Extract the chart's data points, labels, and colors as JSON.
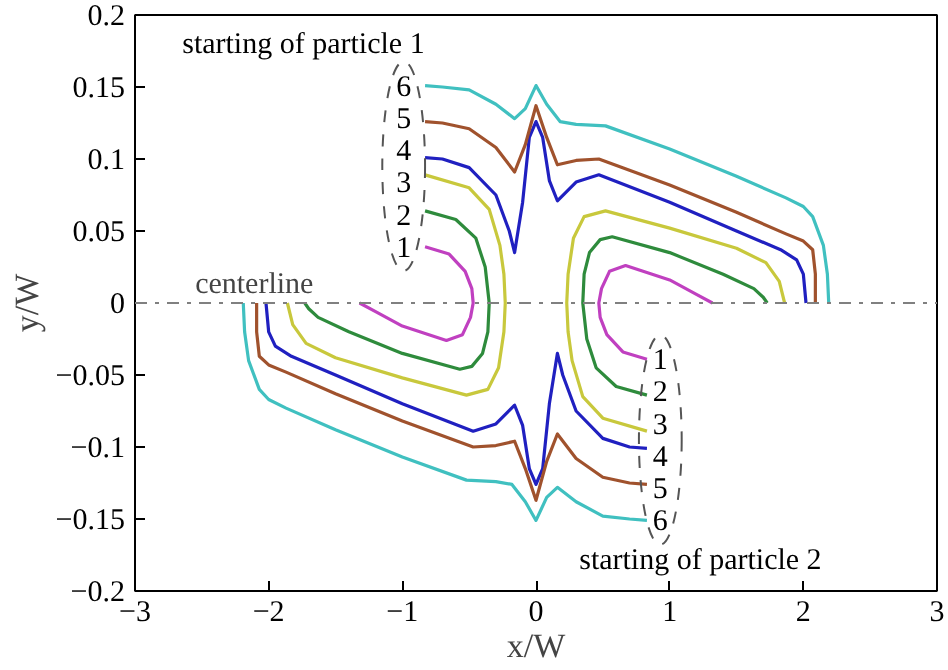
{
  "chart_data": {
    "type": "line",
    "xlabel": "x/W",
    "ylabel": "y/W",
    "xlim": [
      -3,
      3
    ],
    "ylim": [
      -0.2,
      0.2
    ],
    "xticks": [
      -3,
      -2,
      -1,
      0,
      1,
      2,
      3
    ],
    "yticks": [
      -0.2,
      -0.15,
      -0.1,
      -0.05,
      0,
      0.05,
      0.1,
      0.15,
      0.2
    ],
    "grid": false,
    "marker": "none",
    "line_style": "solid",
    "ref_lines": [
      {
        "axis": "y",
        "value": 0,
        "label": "centerline",
        "color": "#808080",
        "line_style": "dashdot"
      }
    ],
    "annotations": [
      "starting of particle 1",
      "1",
      "2",
      "3",
      "4",
      "5",
      "6",
      "starting of particle 2",
      "1",
      "2",
      "3",
      "4",
      "5",
      "6"
    ],
    "series": [
      {
        "color": "#c040c0",
        "x": [
          -0.83,
          -0.65,
          -0.53,
          -0.48,
          -0.47,
          -0.49,
          -0.55,
          -0.67,
          -1.0,
          -1.2,
          -1.32
        ],
        "values": [
          0.039,
          0.034,
          0.022,
          0.01,
          0,
          -0.01,
          -0.022,
          -0.026,
          -0.016,
          -0.006,
          0
        ]
      },
      {
        "color": "#2e8b3c",
        "x": [
          -0.83,
          -0.6,
          -0.45,
          -0.38,
          -0.35,
          -0.36,
          -0.4,
          -0.48,
          -0.57,
          -1.0,
          -1.4,
          -1.63,
          -1.7,
          -1.73
        ],
        "values": [
          0.064,
          0.058,
          0.045,
          0.025,
          0,
          -0.02,
          -0.035,
          -0.044,
          -0.046,
          -0.035,
          -0.02,
          -0.01,
          -0.004,
          0
        ]
      },
      {
        "color": "#c8c83c",
        "x": [
          -0.83,
          -0.5,
          -0.35,
          -0.27,
          -0.24,
          -0.23,
          -0.24,
          -0.28,
          -0.36,
          -0.52,
          -1.0,
          -1.5,
          -1.72,
          -1.82,
          -1.86
        ],
        "values": [
          0.089,
          0.08,
          0.065,
          0.04,
          0.02,
          0,
          -0.02,
          -0.045,
          -0.06,
          -0.064,
          -0.052,
          -0.038,
          -0.028,
          -0.015,
          0
        ]
      },
      {
        "color": "#2020c0",
        "x": [
          -0.83,
          -0.7,
          -0.5,
          -0.3,
          -0.2,
          -0.16,
          -0.1,
          -0.05,
          0.0,
          0.05,
          0.1,
          0.16,
          0.3,
          0.47,
          1.0,
          1.5,
          1.83,
          1.95,
          2.0,
          2.02
        ],
        "values": [
          0.101,
          0.1,
          0.094,
          0.075,
          0.05,
          0.035,
          0.07,
          0.115,
          0.126,
          0.115,
          0.085,
          0.071,
          0.084,
          0.089,
          0.07,
          0.05,
          0.037,
          0.03,
          0.02,
          0
        ]
      },
      {
        "color": "#a0522d",
        "x": [
          -0.83,
          -0.7,
          -0.5,
          -0.3,
          -0.16,
          -0.08,
          0.0,
          0.08,
          0.16,
          0.3,
          0.47,
          1.0,
          1.5,
          1.87,
          2.0,
          2.07,
          2.09,
          2.09
        ],
        "values": [
          0.126,
          0.125,
          0.121,
          0.108,
          0.091,
          0.11,
          0.137,
          0.115,
          0.096,
          0.099,
          0.1,
          0.082,
          0.063,
          0.048,
          0.043,
          0.037,
          0.02,
          0
        ]
      },
      {
        "color": "#40c0c0",
        "x": [
          -0.83,
          -0.7,
          -0.5,
          -0.3,
          -0.16,
          -0.08,
          0.0,
          0.08,
          0.18,
          0.3,
          0.52,
          1.0,
          1.5,
          1.87,
          2.0,
          2.07,
          2.15,
          2.18,
          2.19
        ],
        "values": [
          0.151,
          0.15,
          0.148,
          0.138,
          0.128,
          0.135,
          0.151,
          0.138,
          0.126,
          0.124,
          0.123,
          0.107,
          0.088,
          0.073,
          0.067,
          0.06,
          0.04,
          0.02,
          0
        ]
      },
      {
        "color": "#c040c0",
        "x": [
          0.83,
          0.65,
          0.53,
          0.48,
          0.47,
          0.49,
          0.55,
          0.67,
          1.0,
          1.2,
          1.32
        ],
        "values": [
          -0.039,
          -0.034,
          -0.022,
          -0.01,
          0,
          0.01,
          0.022,
          0.026,
          0.016,
          0.006,
          0
        ]
      },
      {
        "color": "#2e8b3c",
        "x": [
          0.83,
          0.6,
          0.45,
          0.38,
          0.35,
          0.36,
          0.4,
          0.48,
          0.57,
          1.0,
          1.4,
          1.63,
          1.7,
          1.73
        ],
        "values": [
          -0.064,
          -0.058,
          -0.045,
          -0.025,
          0,
          0.02,
          0.035,
          0.044,
          0.046,
          0.035,
          0.02,
          0.01,
          0.004,
          0
        ]
      },
      {
        "color": "#c8c83c",
        "x": [
          0.83,
          0.5,
          0.35,
          0.27,
          0.24,
          0.23,
          0.24,
          0.28,
          0.36,
          0.52,
          1.0,
          1.5,
          1.72,
          1.82,
          1.86
        ],
        "values": [
          -0.089,
          -0.08,
          -0.065,
          -0.04,
          -0.02,
          0,
          0.02,
          0.045,
          0.06,
          0.064,
          0.052,
          0.038,
          0.028,
          0.015,
          0
        ]
      },
      {
        "color": "#2020c0",
        "x": [
          0.83,
          0.7,
          0.5,
          0.3,
          0.2,
          0.16,
          0.1,
          0.05,
          0.0,
          -0.05,
          -0.1,
          -0.16,
          -0.3,
          -0.47,
          -1.0,
          -1.5,
          -1.83,
          -1.95,
          -2.0,
          -2.02
        ],
        "values": [
          -0.101,
          -0.1,
          -0.094,
          -0.075,
          -0.05,
          -0.035,
          -0.07,
          -0.115,
          -0.126,
          -0.115,
          -0.085,
          -0.071,
          -0.084,
          -0.089,
          -0.07,
          -0.05,
          -0.037,
          -0.03,
          -0.02,
          0
        ]
      },
      {
        "color": "#a0522d",
        "x": [
          0.83,
          0.7,
          0.5,
          0.3,
          0.16,
          0.08,
          0.0,
          -0.08,
          -0.16,
          -0.3,
          -0.47,
          -1.0,
          -1.5,
          -1.87,
          -2.0,
          -2.07,
          -2.09,
          -2.09
        ],
        "values": [
          -0.126,
          -0.125,
          -0.121,
          -0.108,
          -0.091,
          -0.11,
          -0.137,
          -0.115,
          -0.096,
          -0.099,
          -0.1,
          -0.082,
          -0.063,
          -0.048,
          -0.043,
          -0.037,
          -0.02,
          0
        ]
      },
      {
        "color": "#40c0c0",
        "x": [
          0.83,
          0.7,
          0.5,
          0.3,
          0.16,
          0.08,
          0.0,
          -0.08,
          -0.18,
          -0.3,
          -0.52,
          -1.0,
          -1.5,
          -1.87,
          -2.0,
          -2.07,
          -2.15,
          -2.18,
          -2.19
        ],
        "values": [
          -0.151,
          -0.15,
          -0.148,
          -0.138,
          -0.128,
          -0.135,
          -0.151,
          -0.138,
          -0.126,
          -0.124,
          -0.123,
          -0.107,
          -0.088,
          -0.073,
          -0.067,
          -0.06,
          -0.04,
          -0.02,
          0
        ]
      }
    ]
  }
}
